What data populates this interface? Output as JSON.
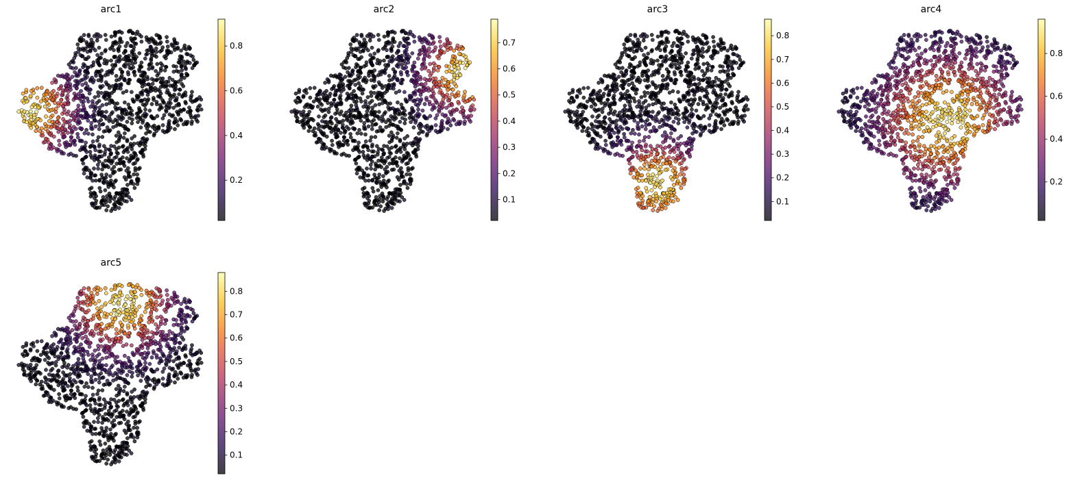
{
  "chart_data": [
    {
      "type": "scatter",
      "title": "arc1",
      "colormap": "inferno",
      "point_alpha": 0.75,
      "colorbar": {
        "min": 0.02,
        "max": 0.92,
        "ticks": [
          0.2,
          0.4,
          0.6,
          0.8
        ]
      },
      "grid": false,
      "axes_visible": false,
      "high_region": "left-lobe"
    },
    {
      "type": "scatter",
      "title": "arc2",
      "colormap": "inferno",
      "point_alpha": 0.75,
      "colorbar": {
        "min": 0.02,
        "max": 0.79,
        "ticks": [
          0.1,
          0.2,
          0.3,
          0.4,
          0.5,
          0.6,
          0.7
        ]
      },
      "grid": false,
      "axes_visible": false,
      "high_region": "right-arm"
    },
    {
      "type": "scatter",
      "title": "arc3",
      "colormap": "inferno",
      "point_alpha": 0.75,
      "colorbar": {
        "min": 0.02,
        "max": 0.87,
        "ticks": [
          0.1,
          0.2,
          0.3,
          0.4,
          0.5,
          0.6,
          0.7,
          0.8
        ]
      },
      "grid": false,
      "axes_visible": false,
      "high_region": "bottom-tail"
    },
    {
      "type": "scatter",
      "title": "arc4",
      "colormap": "inferno",
      "point_alpha": 0.75,
      "colorbar": {
        "min": 0.02,
        "max": 0.96,
        "ticks": [
          0.2,
          0.4,
          0.6,
          0.8
        ]
      },
      "grid": false,
      "axes_visible": false,
      "high_region": "center"
    },
    {
      "type": "scatter",
      "title": "arc5",
      "colormap": "inferno",
      "point_alpha": 0.75,
      "colorbar": {
        "min": 0.02,
        "max": 0.88,
        "ticks": [
          0.1,
          0.2,
          0.3,
          0.4,
          0.5,
          0.6,
          0.7,
          0.8
        ]
      },
      "grid": false,
      "axes_visible": false,
      "high_region": "top-band"
    }
  ]
}
